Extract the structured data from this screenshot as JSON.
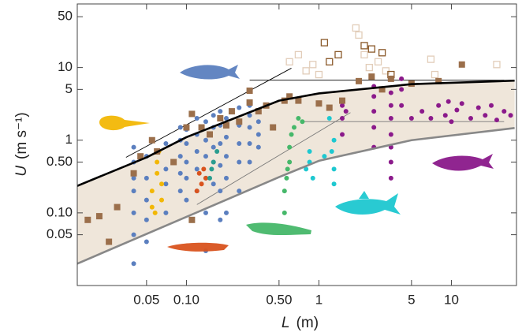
{
  "chart_data": {
    "type": "scatter",
    "xlabel": "L",
    "xunit": "(m)",
    "ylabel": "U",
    "yunit": "(m s⁻¹)",
    "xscale": "log",
    "yscale": "log",
    "xlim": [
      0.015,
      31
    ],
    "ylim": [
      0.01,
      75
    ],
    "xticks": [
      0.05,
      {
        "value": 0.1,
        "label": "0.10"
      },
      {
        "value": 0.5,
        "label": "0.50"
      },
      1,
      5,
      10
    ],
    "yticks": [
      {
        "value": 0.05,
        "label": "0.05"
      },
      {
        "value": 0.1,
        "label": "0.10"
      },
      {
        "value": 0.5,
        "label": "0.50"
      },
      1,
      5,
      10,
      50
    ],
    "band_color": "#efe6da",
    "curves": [
      {
        "color": "#000000",
        "width": 2.6,
        "x": [
          0.015,
          0.05,
          0.1,
          0.5,
          1,
          5,
          30
        ],
        "values": [
          0.235,
          0.58,
          1.1,
          3.5,
          4.4,
          5.9,
          6.6
        ]
      },
      {
        "color": "#888888",
        "width": 2.6,
        "x": [
          0.015,
          0.1,
          0.5,
          1,
          5,
          30
        ],
        "values": [
          0.02,
          0.088,
          0.31,
          0.52,
          1.0,
          1.47
        ]
      }
    ],
    "lines": [
      {
        "color": "#000000",
        "x": [
          0.035,
          0.62
        ],
        "values": [
          0.58,
          9.8
        ]
      },
      {
        "color": "#000000",
        "x": [
          0.3,
          25
        ],
        "values": [
          6.7,
          6.7
        ]
      },
      {
        "color": "#777777",
        "x": [
          0.12,
          1.73
        ],
        "values": [
          0.13,
          2.4
        ]
      },
      {
        "color": "#777777",
        "x": [
          0.72,
          25
        ],
        "values": [
          1.8,
          1.8
        ]
      }
    ],
    "series": [
      {
        "marker": "square-open",
        "color": "#e2cdb9",
        "x": [
          0.6,
          0.7,
          0.8,
          0.9,
          1.9,
          2.0,
          2.2,
          2.4,
          2.8,
          3.2,
          7.0,
          7.5,
          22,
          1.0
        ],
        "values": [
          12,
          15,
          9,
          11,
          35,
          28,
          15,
          10,
          12,
          9,
          13,
          8,
          11,
          8
        ]
      },
      {
        "marker": "square-open",
        "color": "#8b5a2b",
        "x": [
          1.1,
          1.2,
          1.4,
          2.2,
          2.5,
          3.0,
          3.5
        ],
        "values": [
          22,
          12,
          15,
          20,
          18,
          16,
          8
        ]
      },
      {
        "marker": "circle",
        "color": "#5b7fbf",
        "x": [
          0.04,
          0.04,
          0.04,
          0.04,
          0.04,
          0.04,
          0.04,
          0.05,
          0.05,
          0.05,
          0.05,
          0.05,
          0.07,
          0.07,
          0.07,
          0.07,
          0.09,
          0.09,
          0.09,
          0.09,
          0.09,
          0.1,
          0.1,
          0.1,
          0.1,
          0.1,
          0.12,
          0.12,
          0.12,
          0.12,
          0.12,
          0.14,
          0.14,
          0.14,
          0.14,
          0.14,
          0.14,
          0.16,
          0.16,
          0.16,
          0.16,
          0.16,
          0.18,
          0.18,
          0.18,
          0.18,
          0.18,
          0.18,
          0.2,
          0.2,
          0.2,
          0.2,
          0.2,
          0.25,
          0.25,
          0.25,
          0.25,
          0.25,
          0.3,
          0.3,
          0.3,
          0.3,
          0.3,
          0.35,
          0.35,
          0.35
        ],
        "values": [
          0.02,
          0.05,
          0.1,
          0.2,
          0.3,
          0.5,
          0.8,
          0.04,
          0.08,
          0.15,
          0.3,
          0.6,
          0.1,
          0.25,
          0.4,
          0.9,
          0.2,
          0.35,
          0.6,
          1.0,
          1.5,
          0.15,
          0.3,
          0.5,
          0.9,
          1.4,
          0.2,
          0.4,
          0.7,
          1.2,
          2.0,
          0.03,
          0.1,
          0.3,
          0.6,
          1.0,
          1.8,
          0.25,
          0.5,
          0.8,
          1.5,
          2.2,
          0.08,
          0.2,
          0.45,
          0.9,
          1.6,
          2.5,
          0.1,
          0.3,
          0.6,
          1.1,
          2.0,
          0.2,
          0.5,
          0.9,
          1.6,
          2.8,
          0.5,
          0.9,
          1.5,
          2.2,
          3.0,
          0.8,
          1.2,
          1.8
        ]
      },
      {
        "marker": "circle",
        "color": "#f2b705",
        "x": [
          0.055,
          0.055,
          0.06,
          0.06,
          0.065,
          0.065,
          0.062,
          0.058
        ],
        "values": [
          0.12,
          0.2,
          0.35,
          0.5,
          0.15,
          0.25,
          0.7,
          0.1
        ]
      },
      {
        "marker": "circle",
        "color": "#d9531e",
        "x": [
          0.12,
          0.13,
          0.14,
          0.125,
          0.135
        ],
        "values": [
          0.2,
          0.25,
          0.3,
          0.35,
          0.4
        ]
      },
      {
        "marker": "circle",
        "color": "#2a9d8f",
        "x": [
          0.15,
          0.16,
          0.17,
          0.155
        ],
        "values": [
          0.3,
          0.5,
          0.7,
          0.4
        ]
      },
      {
        "marker": "circle",
        "color": "#46b86a",
        "x": [
          0.55,
          0.55,
          0.57,
          0.6,
          0.6,
          0.62,
          0.65,
          0.7,
          0.58,
          0.75
        ],
        "values": [
          0.1,
          0.2,
          0.3,
          0.5,
          0.8,
          1.2,
          1.5,
          2.0,
          0.4,
          1.8
        ]
      },
      {
        "marker": "circle",
        "color": "#1ec8d0",
        "x": [
          0.8,
          0.85,
          0.9,
          1.1,
          1.3,
          1.3,
          1.25,
          1.3,
          0.85,
          1.2
        ],
        "values": [
          0.4,
          0.5,
          0.3,
          0.6,
          0.25,
          0.4,
          0.7,
          1.0,
          0.7,
          2.0
        ]
      },
      {
        "marker": "circle",
        "color": "#8b1a8b",
        "x": [
          1.5,
          1.5,
          1.5,
          1.6,
          2.6,
          2.6,
          2.6,
          2.6,
          2.6,
          3.5,
          3.5,
          3.5,
          3.5,
          3.5,
          3.5,
          3.5,
          3.5,
          4.2,
          4.2,
          4.2,
          6,
          7,
          8,
          9,
          10,
          11,
          12,
          14,
          16,
          18,
          20,
          22,
          25,
          28,
          5,
          9.5
        ],
        "values": [
          1.2,
          2.0,
          3.0,
          2.5,
          0.8,
          1.5,
          2.5,
          4.0,
          5.5,
          0.3,
          0.5,
          0.8,
          1.2,
          2.0,
          3.0,
          4.5,
          7.0,
          3.0,
          5.0,
          7.0,
          2.5,
          2.0,
          3.0,
          2.2,
          1.8,
          2.6,
          3.2,
          2.0,
          2.8,
          2.2,
          3.0,
          1.9,
          2.5,
          2.2,
          2.0,
          3.4
        ]
      },
      {
        "marker": "square",
        "color": "#9b6f4b",
        "x": [
          0.018,
          0.022,
          0.026,
          0.03,
          0.04,
          0.045,
          0.055,
          0.06,
          0.08,
          0.1,
          0.11,
          0.13,
          0.15,
          0.18,
          0.2,
          0.22,
          0.25,
          0.3,
          0.35,
          0.4,
          0.45,
          0.55,
          0.6,
          0.7,
          1.0,
          1.2,
          1.5,
          2.0,
          2.5,
          3.0,
          3.5,
          5.0,
          8.0,
          12.0,
          0.3,
          0.11
        ],
        "values": [
          0.08,
          0.09,
          0.04,
          0.12,
          0.35,
          0.6,
          1.0,
          0.7,
          0.5,
          1.5,
          2.3,
          1.5,
          1.2,
          2.0,
          1.6,
          2.5,
          1.8,
          3.3,
          2.5,
          3.0,
          1.5,
          3.5,
          4.0,
          3.5,
          3.2,
          2.8,
          3.5,
          6.5,
          7.5,
          5.0,
          7.0,
          6.0,
          6.5,
          11.0,
          4.8,
          0.08
        ]
      }
    ]
  }
}
